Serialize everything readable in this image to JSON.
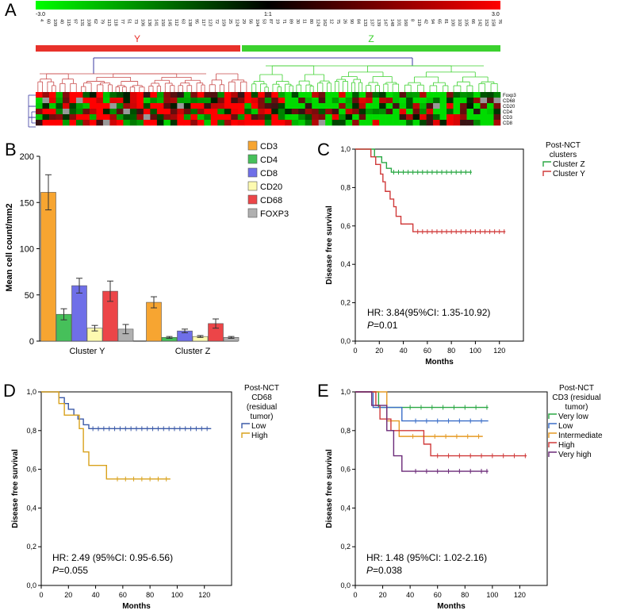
{
  "panel_a": {
    "letter": "A",
    "colorbar": {
      "min_label": "-3.0",
      "mid_label": "1:1",
      "max_label": "3.0",
      "low_color": "#00ff00",
      "mid_color": "#000000",
      "high_color": "#ff0000"
    },
    "sample_ids": [
      "4",
      "60",
      "109",
      "40",
      "115",
      "97",
      "131",
      "108",
      "62",
      "79",
      "113",
      "118",
      "77",
      "51",
      "73",
      "106",
      "136",
      "141",
      "150",
      "145",
      "112",
      "63",
      "138",
      "95",
      "117",
      "123",
      "72",
      "159",
      "25",
      "124",
      "29",
      "56",
      "104",
      "53",
      "87",
      "19",
      "71",
      "89",
      "30",
      "11",
      "80",
      "124",
      "162",
      "12",
      "75",
      "26",
      "90",
      "84",
      "133",
      "137",
      "139",
      "147",
      "148",
      "101",
      "160",
      "8",
      "119",
      "42",
      "94",
      "65",
      "81",
      "100",
      "102",
      "105",
      "66",
      "142",
      "152",
      "158",
      "76"
    ],
    "clusters": [
      {
        "label": "Y",
        "color": "#e8312a"
      },
      {
        "label": "Z",
        "color": "#3bd12e"
      }
    ],
    "row_labels": [
      "Foxp3",
      "CD68",
      "CD20",
      "CD4",
      "CD3",
      "CD8"
    ]
  },
  "chart_data": [
    {
      "panel": "B",
      "type": "bar",
      "categories": [
        "Cluster Y",
        "Cluster Z"
      ],
      "ylabel": "Mean cell count/mm2",
      "xlabel": "",
      "ylim": [
        0,
        200
      ],
      "yticks": [
        0,
        50,
        100,
        150,
        200
      ],
      "legend_position": "right",
      "series": [
        {
          "name": "CD3",
          "color": "#f7a531",
          "values": [
            161,
            42
          ],
          "errors": [
            19,
            6
          ]
        },
        {
          "name": "CD4",
          "color": "#46c05a",
          "values": [
            29,
            4
          ],
          "errors": [
            6,
            1
          ]
        },
        {
          "name": "CD8",
          "color": "#6f6fe8",
          "values": [
            60,
            11
          ],
          "errors": [
            8,
            2
          ]
        },
        {
          "name": "CD20",
          "color": "#fdfab0",
          "values": [
            14,
            5
          ],
          "errors": [
            3,
            1
          ]
        },
        {
          "name": "CD68",
          "color": "#ec4548",
          "values": [
            54,
            19
          ],
          "errors": [
            11,
            5
          ]
        },
        {
          "name": "FOXP3",
          "color": "#b0b0b0",
          "values": [
            13,
            4
          ],
          "errors": [
            5,
            1
          ]
        }
      ]
    },
    {
      "panel": "C",
      "type": "line",
      "xlabel": "Months",
      "ylabel": "Disease free survival",
      "xlim": [
        0,
        140
      ],
      "ylim": [
        0,
        1
      ],
      "xticks": [
        0,
        20,
        40,
        60,
        80,
        100,
        120
      ],
      "yticks": [
        "0,0",
        "0,2",
        "0,4",
        "0,6",
        "0,8",
        "1,0"
      ],
      "legend_title": "Post-NCT clusters",
      "hr_text": "HR:  3.84(95%CI: 1.35-10.92)",
      "p_label": "P",
      "p_value": "=0.01",
      "series": [
        {
          "name": "Cluster Z",
          "color": "#2aa844",
          "steps": [
            [
              0,
              1
            ],
            [
              16,
              0.96
            ],
            [
              22,
              0.93
            ],
            [
              26,
              0.9
            ],
            [
              30,
              0.88
            ],
            [
              97,
              0.88
            ]
          ],
          "censors": [
            32,
            36,
            40,
            44,
            48,
            52,
            56,
            60,
            64,
            68,
            72,
            76,
            80,
            84,
            88,
            92,
            96
          ]
        },
        {
          "name": "Cluster Y",
          "color": "#d03a3a",
          "steps": [
            [
              0,
              1
            ],
            [
              13,
              0.96
            ],
            [
              17,
              0.92
            ],
            [
              21,
              0.87
            ],
            [
              23,
              0.83
            ],
            [
              25,
              0.78
            ],
            [
              29,
              0.74
            ],
            [
              32,
              0.7
            ],
            [
              34,
              0.65
            ],
            [
              38,
              0.61
            ],
            [
              48,
              0.57
            ],
            [
              125,
              0.57
            ]
          ],
          "censors": [
            52,
            56,
            60,
            64,
            68,
            72,
            76,
            80,
            84,
            88,
            92,
            96,
            100,
            104,
            108,
            112,
            116,
            120,
            124
          ]
        }
      ]
    },
    {
      "panel": "D",
      "type": "line",
      "xlabel": "Months",
      "ylabel": "Disease free survival",
      "xlim": [
        0,
        140
      ],
      "ylim": [
        0,
        1
      ],
      "xticks": [
        0,
        20,
        40,
        60,
        80,
        100,
        120
      ],
      "yticks": [
        "0,0",
        "0,2",
        "0,4",
        "0,6",
        "0,8",
        "1,0"
      ],
      "legend_title": "Post-NCT CD68 (residual tumor)",
      "hr_text": "HR: 2.49 (95%CI: 0.95-6.56)",
      "p_label": "P",
      "p_value": "=0.055",
      "series": [
        {
          "name": "Low",
          "color": "#3b5aa8",
          "steps": [
            [
              0,
              1
            ],
            [
              13,
              0.97
            ],
            [
              17,
              0.94
            ],
            [
              20,
              0.91
            ],
            [
              24,
              0.88
            ],
            [
              27,
              0.86
            ],
            [
              31,
              0.83
            ],
            [
              35,
              0.81
            ],
            [
              125,
              0.81
            ]
          ],
          "censors": [
            38,
            42,
            46,
            50,
            54,
            58,
            62,
            66,
            70,
            74,
            78,
            82,
            86,
            90,
            94,
            98,
            102,
            106,
            110,
            114,
            118,
            122
          ]
        },
        {
          "name": "High",
          "color": "#d9a21c",
          "steps": [
            [
              0,
              1
            ],
            [
              13,
              0.94
            ],
            [
              17,
              0.88
            ],
            [
              28,
              0.81
            ],
            [
              31,
              0.69
            ],
            [
              35,
              0.62
            ],
            [
              48,
              0.55
            ],
            [
              95,
              0.55
            ]
          ],
          "censors": [
            56,
            62,
            68,
            74,
            80,
            86,
            92
          ]
        }
      ]
    },
    {
      "panel": "E",
      "type": "line",
      "xlabel": "Months",
      "ylabel": "Disease free survival",
      "xlim": [
        0,
        140
      ],
      "ylim": [
        0,
        1
      ],
      "xticks": [
        0,
        20,
        40,
        60,
        80,
        100,
        120
      ],
      "yticks": [
        "0,0",
        "0,2",
        "0,4",
        "0,6",
        "0,8",
        "1,0"
      ],
      "legend_title": "Post-NCT CD3 (residual tumor)",
      "hr_text": "HR: 1.48 (95%CI: 1.02-2.16)",
      "p_label": "P",
      "p_value": "=0.038",
      "series": [
        {
          "name": "Very low",
          "color": "#2aa844",
          "steps": [
            [
              0,
              1
            ],
            [
              17,
              0.92
            ],
            [
              97,
              0.92
            ]
          ],
          "censors": [
            40,
            48,
            56,
            64,
            72,
            80,
            88,
            96
          ]
        },
        {
          "name": "Low",
          "color": "#3b6ec8",
          "steps": [
            [
              0,
              1
            ],
            [
              13,
              0.92
            ],
            [
              34,
              0.85
            ],
            [
              97,
              0.85
            ]
          ],
          "censors": [
            44,
            52,
            60,
            68,
            76,
            84,
            92
          ]
        },
        {
          "name": "Intermediate",
          "color": "#e59a24",
          "steps": [
            [
              0,
              1
            ],
            [
              23,
              0.85
            ],
            [
              32,
              0.77
            ],
            [
              93,
              0.77
            ]
          ],
          "censors": [
            42,
            50,
            58,
            66,
            74,
            82,
            90
          ]
        },
        {
          "name": "High",
          "color": "#d03a3a",
          "steps": [
            [
              0,
              1
            ],
            [
              15,
              0.93
            ],
            [
              18,
              0.86
            ],
            [
              26,
              0.8
            ],
            [
              50,
              0.73
            ],
            [
              55,
              0.67
            ],
            [
              125,
              0.67
            ]
          ],
          "censors": [
            60,
            68,
            76,
            84,
            92,
            100,
            108,
            116,
            124
          ]
        },
        {
          "name": "Very high",
          "color": "#6b2a78",
          "steps": [
            [
              0,
              1
            ],
            [
              12,
              0.93
            ],
            [
              23,
              0.8
            ],
            [
              28,
              0.67
            ],
            [
              34,
              0.59
            ],
            [
              97,
              0.59
            ]
          ],
          "censors": [
            44,
            52,
            60,
            68,
            76,
            84,
            92,
            96
          ]
        }
      ]
    }
  ]
}
